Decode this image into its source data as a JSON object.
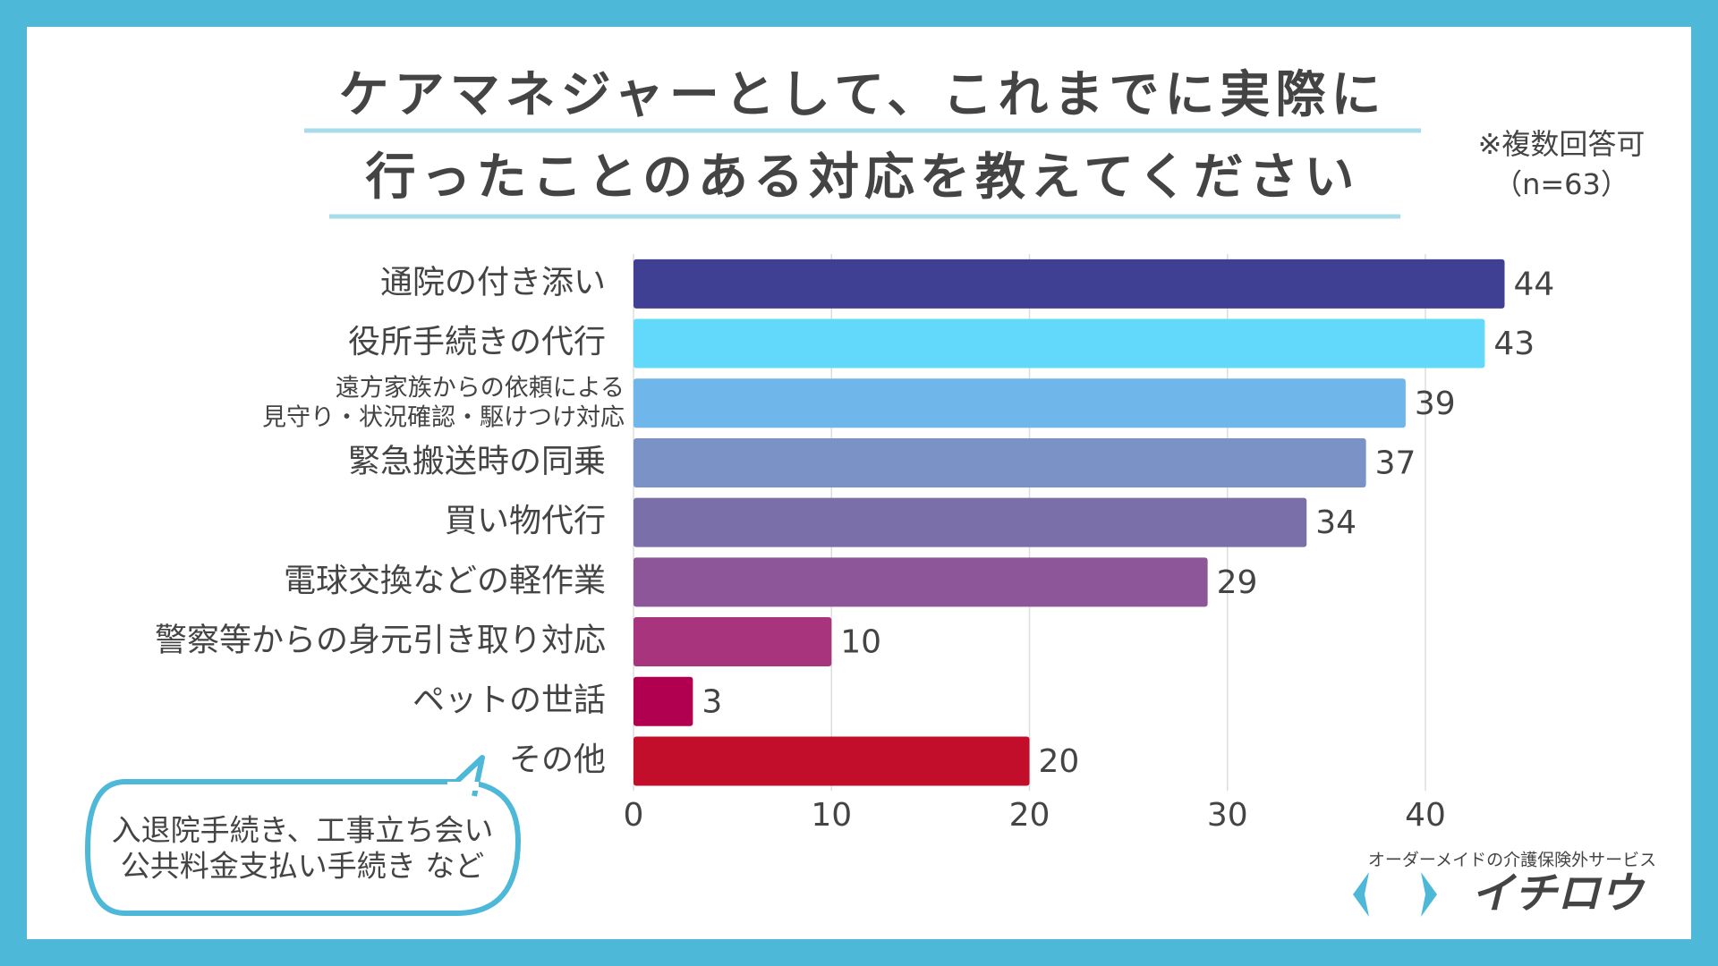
{
  "chart_data": {
    "type": "bar",
    "orientation": "horizontal",
    "title": [
      "ケアマネジャーとして、これまでに実際に",
      "行ったことのある対応を教えてください"
    ],
    "note": [
      "※複数回答可",
      "（n=63）"
    ],
    "categories": [
      "通院の付き添い",
      "役所手続きの代行",
      "遠方家族からの依頼による\n見守り・状況確認・駆けつけ対応",
      "緊急搬送時の同乗",
      "買い物代行",
      "電球交換などの軽作業",
      "警察等からの身元引き取り対応",
      "ペットの世話",
      "その他"
    ],
    "values": [
      44,
      43,
      39,
      37,
      34,
      29,
      10,
      3,
      20
    ],
    "colors": [
      "#3f3f94",
      "#62d9fb",
      "#6fb6ea",
      "#7b92c6",
      "#7b6fa9",
      "#8c5698",
      "#a8347d",
      "#b0004f",
      "#c20e2a"
    ],
    "xlim": [
      0,
      44
    ],
    "xticks": [
      0,
      10,
      20,
      30,
      40
    ],
    "grid": true,
    "annotation": [
      "入退院手続き、工事立ち会い",
      "公共料金支払い手続き など"
    ],
    "brand": {
      "tagline": "オーダーメイドの介護保険外サービス",
      "name": "イチロウ"
    }
  }
}
